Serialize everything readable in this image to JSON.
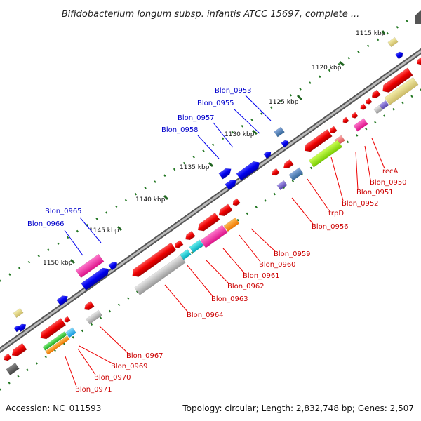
{
  "title": "Bifidobacterium longum subsp. infantis ATCC 15697, complete ...",
  "footer": {
    "accession": "Accession: NC_011593",
    "topology": "Topology: circular; Length: 2,832,748 bp; Genes: 2,507"
  },
  "ticks": [
    "1115 kbp",
    "1120 kbp",
    "1125 kbp",
    "1130 kbp",
    "1135 kbp",
    "1140 kbp",
    "1145 kbp",
    "1150 kbp"
  ],
  "gene_labels_blue": [
    "Blon_0953",
    "Blon_0955",
    "Blon_0957",
    "Blon_0958",
    "Blon_0965",
    "Blon_0966"
  ],
  "gene_labels_red": [
    "recA",
    "Blon_0950",
    "Blon_0951",
    "Blon_0952",
    "trpD",
    "Blon_0956",
    "Blon_0959",
    "Blon_0960",
    "Blon_0961",
    "Blon_0962",
    "Blon_0963",
    "Blon_0964",
    "Blon_0967",
    "Blon_0969",
    "Blon_0970",
    "Blon_0971"
  ],
  "colors": {
    "forward_strand": "#0000ee",
    "reverse_strand": "#ee0000",
    "backbone": "#888888",
    "tick_dots": "#228822"
  }
}
